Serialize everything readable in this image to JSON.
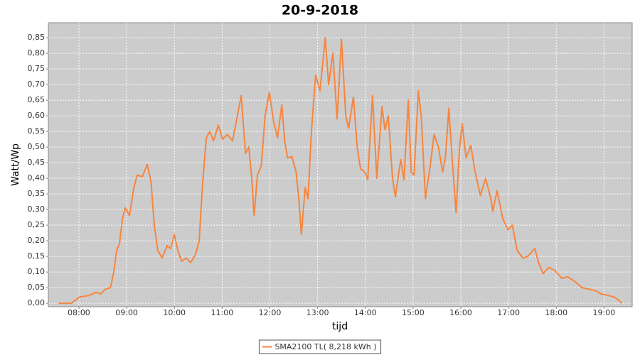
{
  "chart_data": {
    "type": "line",
    "title": "20-9-2018",
    "x_label": "tijd",
    "y_label": "Watt/Wp",
    "legend": "bottom",
    "grid": true,
    "background": "#cccccc",
    "xlim": [
      7.36,
      19.59
    ],
    "ylim": [
      -0.011,
      0.898
    ],
    "xticks": [
      {
        "value": 8,
        "label": "08:00"
      },
      {
        "value": 9,
        "label": "09:00"
      },
      {
        "value": 10,
        "label": "10:00"
      },
      {
        "value": 11,
        "label": "11:00"
      },
      {
        "value": 12,
        "label": "12:00"
      },
      {
        "value": 13,
        "label": "13:00"
      },
      {
        "value": 14,
        "label": "14:00"
      },
      {
        "value": 15,
        "label": "15:00"
      },
      {
        "value": 16,
        "label": "16:00"
      },
      {
        "value": 17,
        "label": "17:00"
      },
      {
        "value": 18,
        "label": "18:00"
      },
      {
        "value": 19,
        "label": "19:00"
      }
    ],
    "yticks": [
      {
        "value": 0,
        "label": "0,00"
      },
      {
        "value": 0.05,
        "label": "0,05"
      },
      {
        "value": 0.1,
        "label": "0,10"
      },
      {
        "value": 0.15,
        "label": "0,15"
      },
      {
        "value": 0.2,
        "label": "0,20"
      },
      {
        "value": 0.25,
        "label": "0,25"
      },
      {
        "value": 0.3,
        "label": "0,30"
      },
      {
        "value": 0.35,
        "label": "0,35"
      },
      {
        "value": 0.4,
        "label": "0,40"
      },
      {
        "value": 0.45,
        "label": "0,45"
      },
      {
        "value": 0.5,
        "label": "0,50"
      },
      {
        "value": 0.55,
        "label": "0,55"
      },
      {
        "value": 0.6,
        "label": "0,60"
      },
      {
        "value": 0.65,
        "label": "0,65"
      },
      {
        "value": 0.7,
        "label": "0,70"
      },
      {
        "value": 0.75,
        "label": "0,75"
      },
      {
        "value": 0.8,
        "label": "0,80"
      },
      {
        "value": 0.85,
        "label": "0,85"
      }
    ],
    "x": [
      7.57,
      7.84,
      8.01,
      8.21,
      8.36,
      8.46,
      8.55,
      8.66,
      8.73,
      8.79,
      8.85,
      8.91,
      8.97,
      9.06,
      9.15,
      9.22,
      9.33,
      9.43,
      9.51,
      9.58,
      9.65,
      9.74,
      9.85,
      9.92,
      10.0,
      10.07,
      10.15,
      10.25,
      10.34,
      10.44,
      10.52,
      10.59,
      10.67,
      10.74,
      10.82,
      10.92,
      11.01,
      11.11,
      11.22,
      11.32,
      11.4,
      11.49,
      11.56,
      11.62,
      11.67,
      11.74,
      11.82,
      11.9,
      11.99,
      12.08,
      12.16,
      12.25,
      12.31,
      12.37,
      12.46,
      12.55,
      12.61,
      12.66,
      12.74,
      12.8,
      12.87,
      12.96,
      13.05,
      13.16,
      13.23,
      13.32,
      13.41,
      13.5,
      13.59,
      13.65,
      13.75,
      13.83,
      13.9,
      13.99,
      14.05,
      14.15,
      14.24,
      14.35,
      14.41,
      14.48,
      14.57,
      14.63,
      14.74,
      14.81,
      14.9,
      14.96,
      15.02,
      15.11,
      15.17,
      15.26,
      15.36,
      15.44,
      15.53,
      15.62,
      15.68,
      15.75,
      15.82,
      15.9,
      15.97,
      16.03,
      16.11,
      16.21,
      16.3,
      16.41,
      16.52,
      16.63,
      16.67,
      16.76,
      16.88,
      16.99,
      17.08,
      17.18,
      17.3,
      17.4,
      17.55,
      17.63,
      17.72,
      17.85,
      17.97,
      18.12,
      18.24,
      18.39,
      18.54,
      18.69,
      18.83,
      18.94,
      19.09,
      19.21,
      19.31,
      19.37
    ],
    "series": [
      {
        "name": "SMA2100 TL( 8,218 kWh )",
        "color": "#f7853f",
        "values": [
          0,
          0,
          0.02,
          0.025,
          0.035,
          0.03,
          0.045,
          0.05,
          0.1,
          0.17,
          0.19,
          0.27,
          0.305,
          0.28,
          0.37,
          0.41,
          0.405,
          0.445,
          0.39,
          0.25,
          0.17,
          0.145,
          0.185,
          0.175,
          0.22,
          0.17,
          0.135,
          0.145,
          0.13,
          0.155,
          0.2,
          0.38,
          0.53,
          0.55,
          0.52,
          0.57,
          0.525,
          0.54,
          0.52,
          0.6,
          0.665,
          0.48,
          0.5,
          0.4,
          0.28,
          0.41,
          0.44,
          0.6,
          0.675,
          0.58,
          0.53,
          0.635,
          0.52,
          0.465,
          0.47,
          0.42,
          0.33,
          0.22,
          0.37,
          0.335,
          0.55,
          0.73,
          0.68,
          0.85,
          0.7,
          0.8,
          0.59,
          0.845,
          0.6,
          0.56,
          0.66,
          0.5,
          0.43,
          0.42,
          0.395,
          0.665,
          0.4,
          0.63,
          0.555,
          0.6,
          0.4,
          0.34,
          0.46,
          0.395,
          0.65,
          0.42,
          0.41,
          0.68,
          0.6,
          0.335,
          0.44,
          0.54,
          0.5,
          0.42,
          0.47,
          0.625,
          0.46,
          0.29,
          0.49,
          0.575,
          0.465,
          0.505,
          0.42,
          0.345,
          0.4,
          0.335,
          0.295,
          0.36,
          0.27,
          0.235,
          0.25,
          0.17,
          0.145,
          0.15,
          0.175,
          0.13,
          0.095,
          0.115,
          0.105,
          0.08,
          0.085,
          0.07,
          0.05,
          0.045,
          0.04,
          0.03,
          0.025,
          0.02,
          0.01,
          0
        ]
      }
    ]
  }
}
